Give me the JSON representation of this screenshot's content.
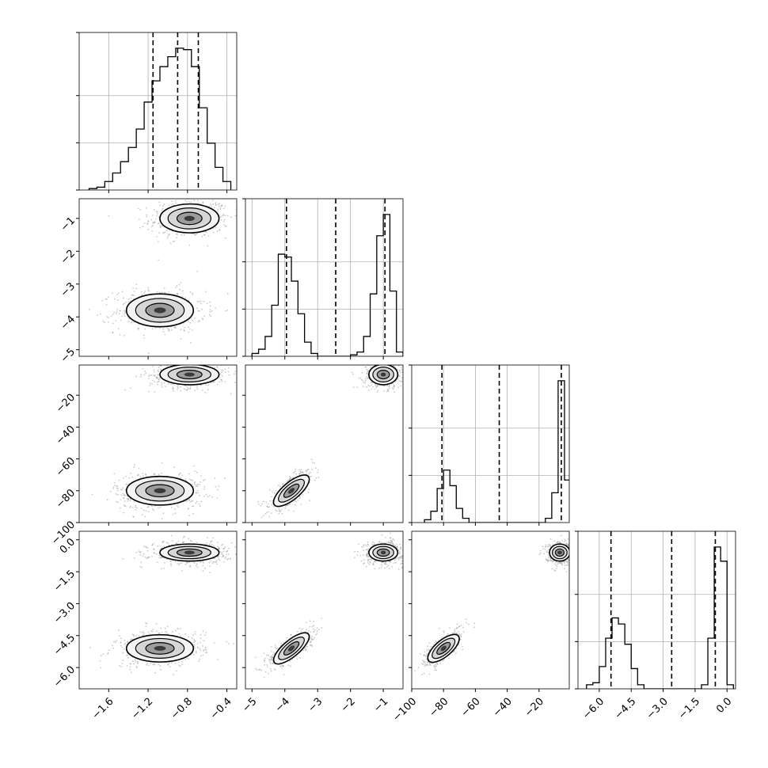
{
  "chart_data": {
    "type": "corner",
    "colors": {
      "frame": "#000000",
      "grid": "#b0b0b0",
      "hist": "#000000",
      "quantile": "#000000",
      "points": "#9a9a9a"
    },
    "grid": true,
    "parameters": [
      {
        "range": [
          -1.9,
          -0.3
        ],
        "ticks": [
          -1.6,
          -1.2,
          -0.8,
          -0.4
        ],
        "tick_labels": [
          "−1.6",
          "−1.2",
          "−0.8",
          "−0.4"
        ],
        "quantiles": [
          -1.15,
          -0.9,
          -0.69
        ],
        "hist_edges": [
          -1.8,
          -1.72,
          -1.64,
          -1.56,
          -1.48,
          -1.4,
          -1.32,
          -1.24,
          -1.16,
          -1.08,
          -1.0,
          -0.92,
          -0.84,
          -0.76,
          -0.68,
          -0.6,
          -0.52,
          -0.44,
          -0.36
        ],
        "hist_counts": [
          1,
          2,
          6,
          12,
          20,
          30,
          43,
          62,
          77,
          87,
          94,
          100,
          99,
          87,
          58,
          33,
          16,
          6
        ]
      },
      {
        "range": [
          -5.2,
          -0.4
        ],
        "ticks": [
          -5,
          -4,
          -3,
          -2,
          -1
        ],
        "tick_labels": [
          "−5",
          "−4",
          "−3",
          "−2",
          "−1"
        ],
        "quantiles": [
          -3.95,
          -2.45,
          -0.95
        ],
        "hist_edges": [
          -5.0,
          -4.8,
          -4.6,
          -4.4,
          -4.2,
          -4.0,
          -3.8,
          -3.6,
          -3.4,
          -3.2,
          -3.0,
          -2.8,
          -2.6,
          -2.4,
          -2.2,
          -2.0,
          -1.8,
          -1.6,
          -1.4,
          -1.2,
          -1.0,
          -0.8,
          -0.6,
          -0.4
        ],
        "hist_counts": [
          2,
          5,
          14,
          36,
          72,
          70,
          53,
          30,
          10,
          2,
          0,
          0,
          0,
          0,
          0,
          1,
          3,
          14,
          44,
          85,
          100,
          46,
          3
        ]
      },
      {
        "range": [
          -100,
          -1
        ],
        "ticks": [
          -100,
          -80,
          -60,
          -40,
          -20
        ],
        "tick_labels": [
          "−100",
          "−80",
          "−60",
          "−40",
          "−20"
        ],
        "quantiles": [
          -81,
          -45,
          -6
        ],
        "hist_edges": [
          -92,
          -88,
          -84,
          -80,
          -76,
          -72,
          -68,
          -64,
          -60,
          -56,
          -52,
          -48,
          -44,
          -40,
          -36,
          -32,
          -28,
          -24,
          -20,
          -16,
          -12,
          -8,
          -4,
          0
        ],
        "hist_counts": [
          2,
          8,
          24,
          37,
          26,
          10,
          3,
          0,
          0,
          0,
          0,
          0,
          0,
          0,
          0,
          0,
          0,
          0,
          0,
          3,
          21,
          100,
          30
        ]
      },
      {
        "range": [
          -7.0,
          0.4
        ],
        "ticks": [
          -6.0,
          -4.5,
          -3.0,
          -1.5,
          0.0
        ],
        "tick_labels": [
          "−6.0",
          "−4.5",
          "−3.0",
          "−1.5",
          "0.0"
        ],
        "quantiles": [
          -5.45,
          -2.6,
          -0.55
        ],
        "hist_edges": [
          -6.6,
          -6.3,
          -6.0,
          -5.7,
          -5.4,
          -5.1,
          -4.8,
          -4.5,
          -4.2,
          -3.9,
          -3.6,
          -3.3,
          -3.0,
          -2.7,
          -2.4,
          -2.1,
          -1.8,
          -1.5,
          -1.2,
          -0.9,
          -0.6,
          -0.3,
          0.0,
          0.3
        ],
        "hist_counts": [
          2,
          3,
          11,
          25,
          35,
          32,
          22,
          10,
          2,
          0,
          0,
          0,
          0,
          0,
          0,
          0,
          0,
          0,
          2,
          25,
          70,
          63,
          2
        ]
      }
    ],
    "modes": [
      [
        -0.78,
        -1.0,
        -7.0,
        -0.6
      ],
      [
        -1.08,
        -3.8,
        -80.0,
        -5.1
      ]
    ],
    "spreads": [
      [
        0.15,
        0.22,
        3.2,
        0.2
      ],
      [
        0.17,
        0.25,
        4.5,
        0.32
      ]
    ]
  }
}
